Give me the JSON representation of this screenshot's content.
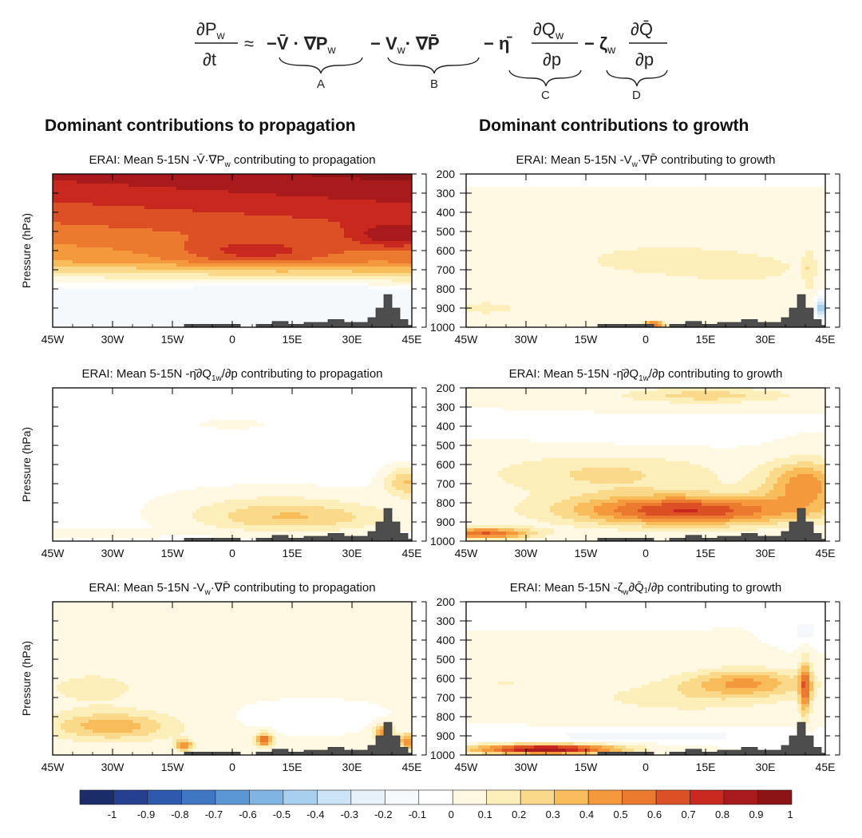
{
  "equation": {
    "lhs_num": "∂P",
    "lhs_num_sub": "w",
    "lhs_den": "∂t",
    "approx": "≈",
    "term_a": {
      "text": "−V̄ · ∇P",
      "sub": "w",
      "label": "A"
    },
    "term_b": {
      "text": "− V",
      "sub": "w",
      "rest": "· ∇P̄",
      "label": "B"
    },
    "term_c": {
      "prefix": "− η̄",
      "num": "∂Q",
      "num_sub": "w",
      "den": "∂p",
      "label": "C"
    },
    "term_d": {
      "prefix": "− ζ",
      "prefix_sub": "w",
      "num": "∂Q̄",
      "den": "∂p",
      "label": "D"
    }
  },
  "headings": {
    "left": "Dominant contributions to propagation",
    "right": "Dominant contributions to growth"
  },
  "axes": {
    "ylabel": "Pressure (hPa)",
    "x_ticks": [
      "45W",
      "30W",
      "15W",
      "0",
      "15E",
      "30E",
      "45E"
    ],
    "y_ticks": [
      "200",
      "300",
      "400",
      "500",
      "600",
      "700",
      "800",
      "900",
      "1000"
    ],
    "xlim": [
      -45,
      45
    ],
    "ylim": [
      1000,
      200
    ]
  },
  "chart_data": [
    {
      "type": "heatmap",
      "panel": "left-1",
      "title": "ERAI: Mean 5-15N -V̄·∇P",
      "title_sub": "w",
      "title_rest": " contributing to propagation",
      "pattern": "propA",
      "xlim": [
        -45,
        45
      ],
      "ylim": [
        1000,
        200
      ]
    },
    {
      "type": "heatmap",
      "panel": "right-1",
      "title": "ERAI: Mean 5-15N -V",
      "title_sub": "w",
      "title_rest": "·∇P̄ contributing to growth",
      "pattern": "growB",
      "xlim": [
        -45,
        45
      ],
      "ylim": [
        1000,
        200
      ]
    },
    {
      "type": "heatmap",
      "panel": "left-2",
      "title": "ERAI: Mean 5-15N -η̄∂Q",
      "title_sub": "1w",
      "title_rest": "/∂p contributing to propagation",
      "pattern": "propC",
      "xlim": [
        -45,
        45
      ],
      "ylim": [
        1000,
        200
      ]
    },
    {
      "type": "heatmap",
      "panel": "right-2",
      "title": "ERAI: Mean 5-15N -η̄∂Q",
      "title_sub": "1w",
      "title_rest": "/∂p contributing to growth",
      "pattern": "growC",
      "xlim": [
        -45,
        45
      ],
      "ylim": [
        1000,
        200
      ]
    },
    {
      "type": "heatmap",
      "panel": "left-3",
      "title": "ERAI: Mean 5-15N -V",
      "title_sub": "w",
      "title_rest": "·∇P̄ contributing to propagation",
      "pattern": "propB",
      "xlim": [
        -45,
        45
      ],
      "ylim": [
        1000,
        200
      ]
    },
    {
      "type": "heatmap",
      "panel": "right-3",
      "title": "ERAI: Mean 5-15N -ζ",
      "title_sub": "w",
      "title_rest": "∂Q̄₁/∂p contributing to growth",
      "pattern": "growD",
      "xlim": [
        -45,
        45
      ],
      "ylim": [
        1000,
        200
      ]
    }
  ],
  "topography": {
    "lon": [
      -12,
      -12,
      2,
      2,
      6,
      6,
      10,
      10,
      14,
      14,
      18,
      18,
      24,
      24,
      28,
      28,
      34,
      34,
      36,
      36,
      38,
      38,
      40,
      40,
      42,
      42,
      44,
      44,
      45
    ],
    "p": [
      1000,
      985,
      985,
      1000,
      1000,
      985,
      985,
      970,
      970,
      985,
      985,
      975,
      975,
      960,
      960,
      975,
      975,
      950,
      950,
      900,
      900,
      830,
      830,
      900,
      900,
      960,
      960,
      990,
      990
    ]
  },
  "colorbar": {
    "ticks": [
      "-1",
      "-0.9",
      "-0.8",
      "-0.7",
      "-0.6",
      "-0.5",
      "-0.4",
      "-0.3",
      "-0.2",
      "-0.1",
      "0",
      "0.1",
      "0.2",
      "0.3",
      "0.4",
      "0.5",
      "0.6",
      "0.7",
      "0.8",
      "0.9",
      "1"
    ],
    "colors": [
      "#1b2c6b",
      "#253f91",
      "#2f59ad",
      "#3f77c2",
      "#5a97d4",
      "#80b5e3",
      "#a8d0ee",
      "#cbe3f4",
      "#e6f1f9",
      "#f5f9fc",
      "#ffffff",
      "#fff9e3",
      "#fdefb9",
      "#fbd98a",
      "#f9bc5b",
      "#f49a3c",
      "#ec7a2e",
      "#dd4f24",
      "#c9281f",
      "#a91a1c",
      "#8c1417"
    ]
  }
}
